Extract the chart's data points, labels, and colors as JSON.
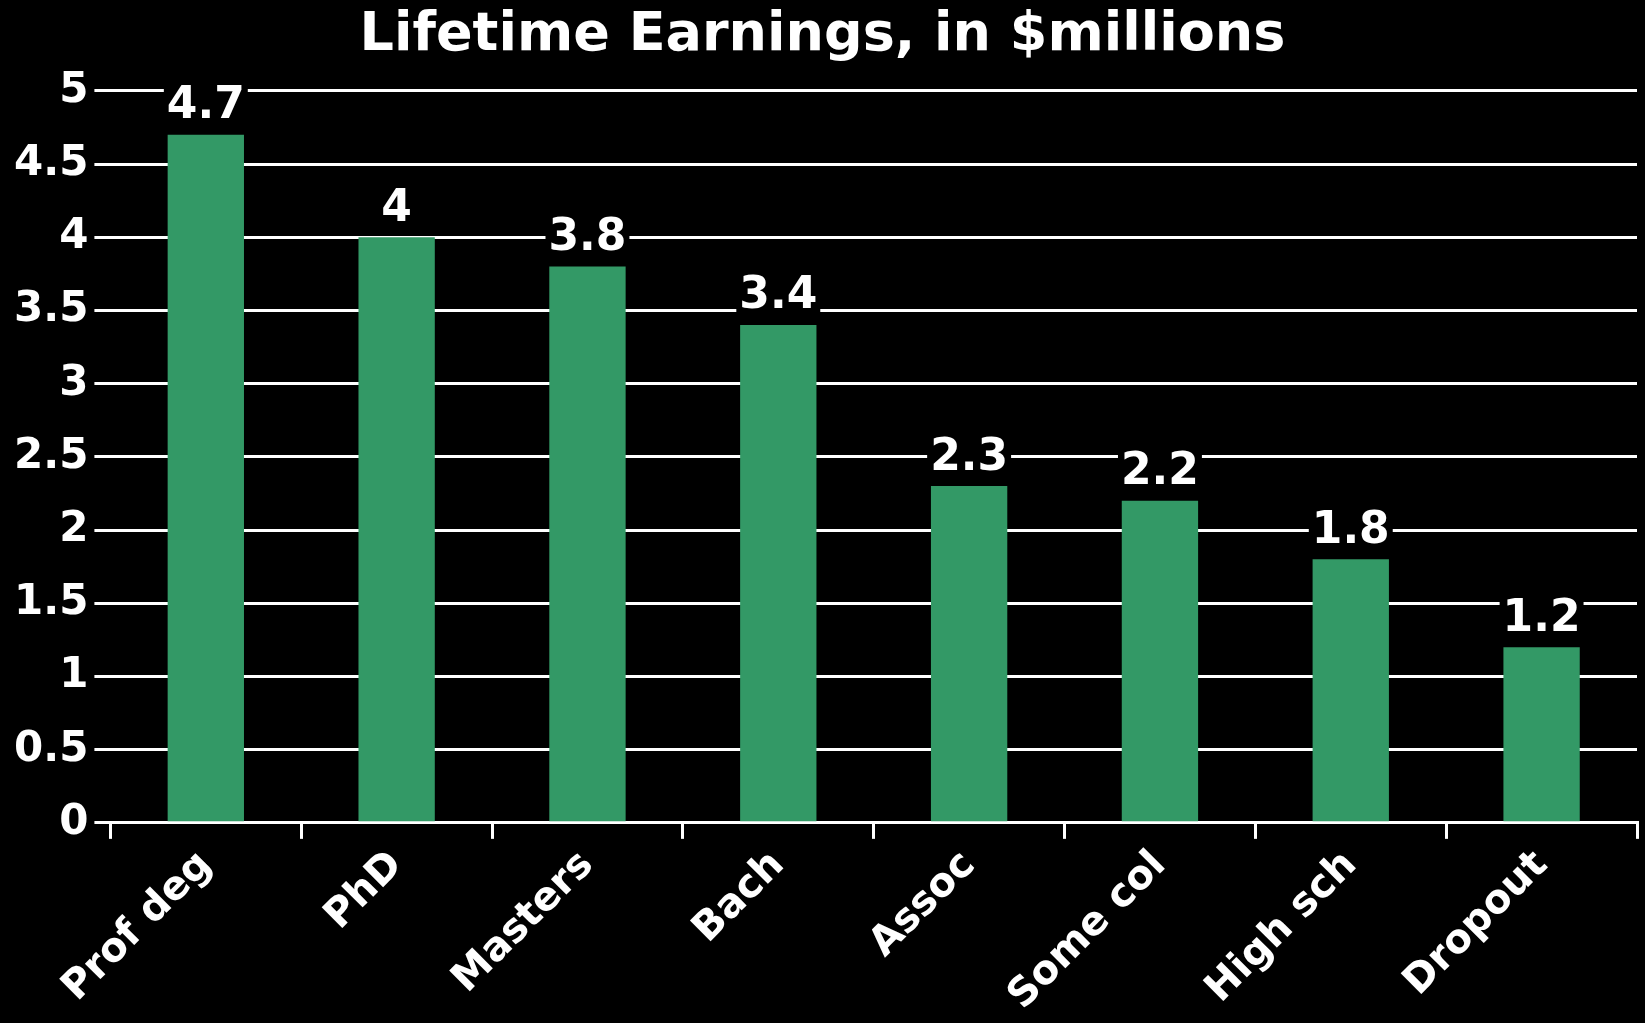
{
  "chart_data": {
    "type": "bar",
    "title": "Lifetime Earnings, in $millions",
    "categories": [
      "Prof deg",
      "PhD",
      "Masters",
      "Bach",
      "Assoc",
      "Some col",
      "High sch",
      "Dropout"
    ],
    "values": [
      4.7,
      4,
      3.8,
      3.4,
      2.3,
      2.2,
      1.8,
      1.2
    ],
    "color": "#339966",
    "ylim": [
      0,
      5
    ],
    "yticks": [
      0,
      0.5,
      1,
      1.5,
      2,
      2.5,
      3,
      3.5,
      4,
      4.5,
      5
    ],
    "grid": "y",
    "data_labels": true
  }
}
